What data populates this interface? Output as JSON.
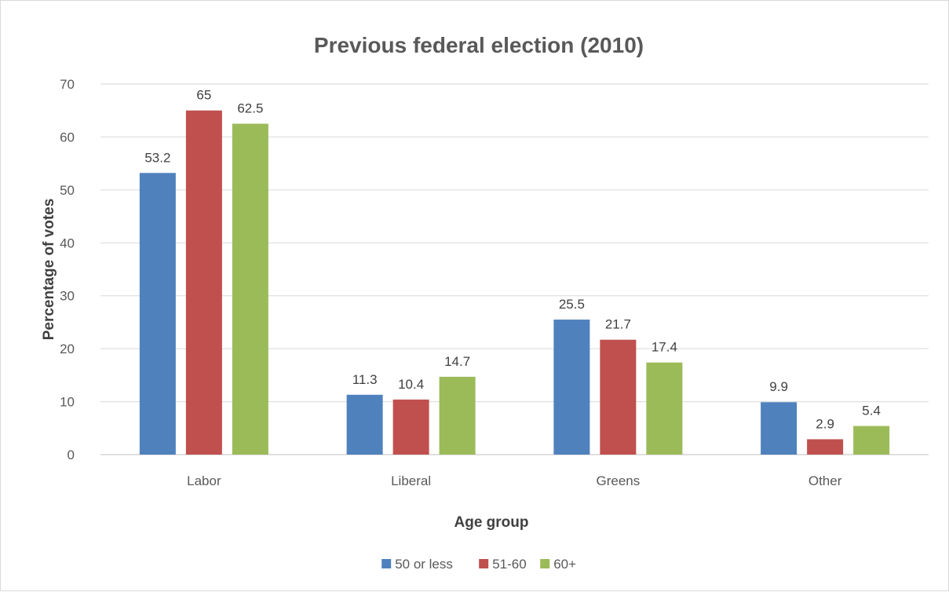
{
  "chart_data": {
    "type": "bar",
    "title": "Previous federal election (2010)",
    "xlabel": "Age group",
    "ylabel": "Percentage of votes",
    "categories": [
      "Labor",
      "Liberal",
      "Greens",
      "Other"
    ],
    "series": [
      {
        "name": "50 or less",
        "values": [
          53.2,
          11.3,
          25.5,
          9.9
        ],
        "color": "#4f81bd"
      },
      {
        "name": "51-60",
        "values": [
          65,
          10.4,
          21.7,
          2.9
        ],
        "color": "#c0504d"
      },
      {
        "name": "60+",
        "values": [
          62.5,
          14.7,
          17.4,
          5.4
        ],
        "color": "#9bbb59"
      }
    ],
    "ylim": [
      0,
      70
    ],
    "yticks": [
      0,
      10,
      20,
      30,
      40,
      50,
      60,
      70
    ],
    "grid": true,
    "legend_position": "bottom"
  }
}
